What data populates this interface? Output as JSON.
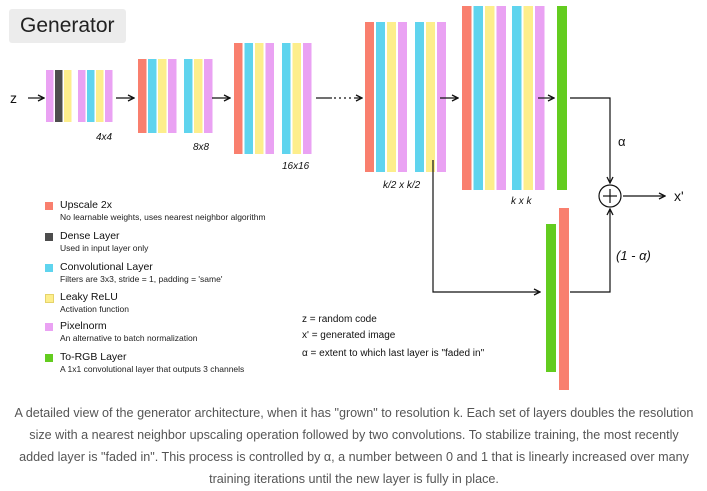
{
  "title": "Generator",
  "colors": {
    "upscale": "#f97f6e",
    "dense": "#4d4d4d",
    "conv": "#5fd4ee",
    "lrelu": "#fdee8c",
    "pixelnorm": "#eaa2f3",
    "torgb": "#63cc1f"
  },
  "stages": [
    {
      "label": "4x4",
      "layers": [
        "pixelnorm",
        "dense",
        "lrelu",
        "pixelnorm",
        "conv",
        "lrelu",
        "pixelnorm"
      ]
    },
    {
      "label": "8x8",
      "layers": [
        "upscale",
        "conv",
        "lrelu",
        "pixelnorm",
        "conv",
        "lrelu",
        "pixelnorm"
      ]
    },
    {
      "label": "16x16",
      "layers": [
        "upscale",
        "conv",
        "lrelu",
        "pixelnorm",
        "conv",
        "lrelu",
        "pixelnorm"
      ]
    },
    {
      "label": "k/2 x k/2",
      "layers": [
        "upscale",
        "conv",
        "lrelu",
        "pixelnorm",
        "conv",
        "lrelu",
        "pixelnorm"
      ]
    },
    {
      "label": "k x k",
      "layers": [
        "upscale",
        "conv",
        "lrelu",
        "pixelnorm",
        "conv",
        "lrelu",
        "pixelnorm"
      ]
    }
  ],
  "input_label": "z",
  "output_label": "x'",
  "alpha_label": "α",
  "one_minus_alpha_label": "(1 - α)",
  "legend": [
    {
      "color": "upscale",
      "title": "Upscale 2x",
      "desc": "No learnable weights, uses nearest neighbor algorithm"
    },
    {
      "color": "dense",
      "title": "Dense Layer",
      "desc": "Used in input layer only"
    },
    {
      "color": "conv",
      "title": "Convolutional Layer",
      "desc": "Filters are 3x3, stride = 1,  padding = 'same'"
    },
    {
      "color": "lrelu",
      "title": "Leaky ReLU",
      "desc": "Activation function"
    },
    {
      "color": "pixelnorm",
      "title": "Pixelnorm",
      "desc": "An alternative to batch normalization"
    },
    {
      "color": "torgb",
      "title": "To-RGB Layer",
      "desc": "A 1x1 convolutional layer that outputs 3 channels"
    }
  ],
  "definitions": [
    "z = random code",
    "x' = generated image",
    "α = extent to which last layer is \"faded in\""
  ],
  "caption": "A detailed view of the generator architecture, when it has \"grown\" to resolution k. Each set of layers doubles the resolution size with a nearest neighbor upscaling operation followed by two convolutions. To stabilize training, the most recently added layer is \"faded in\". This process is controlled by α, a number between 0 and 1 that is linearly increased over many training iterations until the new layer is fully in place."
}
